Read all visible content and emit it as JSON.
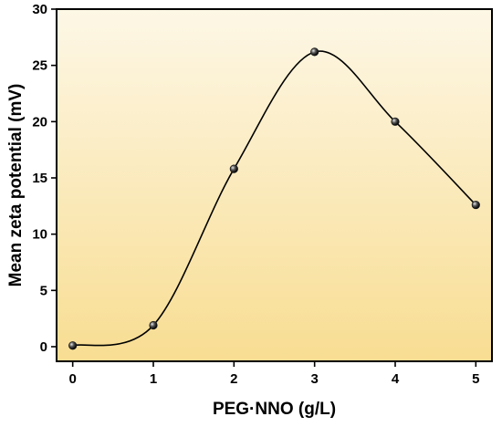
{
  "chart_data": {
    "type": "line",
    "xlabel": "PEG·NNO (g/L)",
    "ylabel": "Mean zeta potential (mV)",
    "x": [
      0,
      1,
      2,
      3,
      4,
      5
    ],
    "y": [
      0.1,
      1.9,
      15.8,
      26.2,
      20.0,
      12.6
    ],
    "xlim": [
      -0.2,
      5.2
    ],
    "ylim": [
      -1.3,
      30
    ],
    "xticks": [
      0,
      1,
      2,
      3,
      4,
      5
    ],
    "yticks": [
      0,
      5,
      10,
      15,
      20,
      25,
      30
    ],
    "grid": false,
    "background_gradient": [
      "#fdf7e6",
      "#f8dd92"
    ],
    "line_color": "#000000",
    "marker_color": "#1a1a1a"
  }
}
